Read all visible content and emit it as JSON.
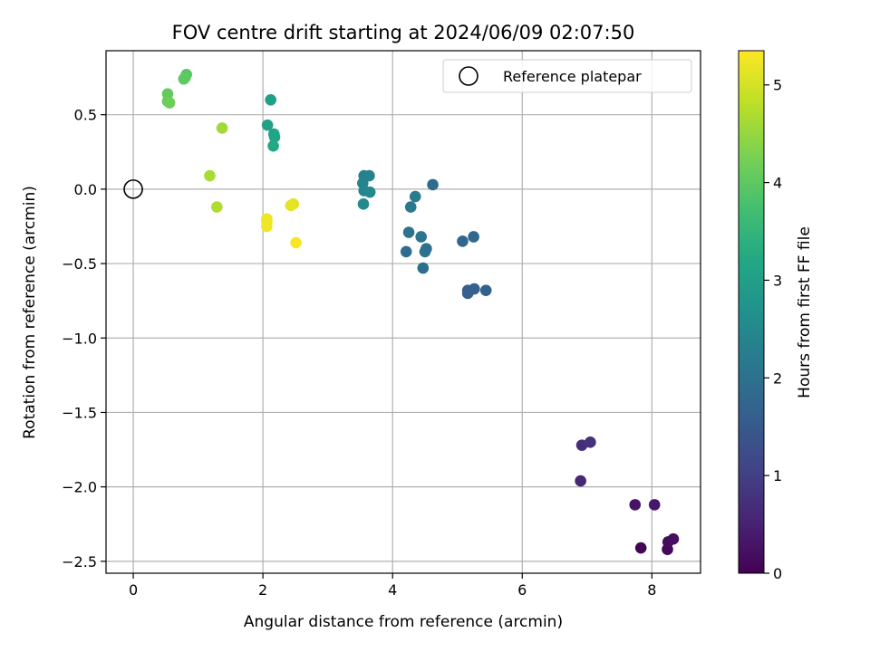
{
  "chart_data": {
    "type": "scatter",
    "title": "FOV centre drift starting at 2024/06/09 02:07:50",
    "xlabel": "Angular distance from reference (arcmin)",
    "ylabel": "Rotation from reference (arcmin)",
    "xlim": [
      -0.42,
      8.75
    ],
    "ylim": [
      -2.58,
      0.93
    ],
    "xticks": [
      0,
      2,
      4,
      6,
      8
    ],
    "xtick_labels": [
      "0",
      "2",
      "4",
      "6",
      "8"
    ],
    "yticks": [
      0.5,
      0.0,
      -0.5,
      -1.0,
      -1.5,
      -2.0,
      -2.5
    ],
    "ytick_labels": [
      "0.5",
      "0.0",
      "−0.5",
      "−1.0",
      "−1.5",
      "−2.0",
      "−2.5"
    ],
    "grid": true,
    "legend": {
      "placement": "upper-right",
      "label": "Reference platepar"
    },
    "reference_point": {
      "x": 0,
      "y": 0
    },
    "colorbar": {
      "label": "Hours from first FF file",
      "range": [
        0,
        5.35
      ],
      "ticks": [
        0,
        1,
        2,
        3,
        4,
        5
      ],
      "colormap": "viridis"
    },
    "points": [
      {
        "x": 7.83,
        "y": -2.41,
        "c": 0.05
      },
      {
        "x": 8.24,
        "y": -2.42,
        "c": 0.1
      },
      {
        "x": 8.25,
        "y": -2.37,
        "c": 0.15
      },
      {
        "x": 8.33,
        "y": -2.35,
        "c": 0.2
      },
      {
        "x": 7.74,
        "y": -2.12,
        "c": 0.3
      },
      {
        "x": 8.04,
        "y": -2.12,
        "c": 0.35
      },
      {
        "x": 6.9,
        "y": -1.96,
        "c": 0.6
      },
      {
        "x": 6.92,
        "y": -1.72,
        "c": 0.7
      },
      {
        "x": 7.05,
        "y": -1.7,
        "c": 0.75
      },
      {
        "x": 5.16,
        "y": -0.68,
        "c": 1.6
      },
      {
        "x": 5.16,
        "y": -0.7,
        "c": 1.62
      },
      {
        "x": 5.26,
        "y": -0.67,
        "c": 1.65
      },
      {
        "x": 5.44,
        "y": -0.68,
        "c": 1.7
      },
      {
        "x": 5.08,
        "y": -0.35,
        "c": 1.75
      },
      {
        "x": 5.25,
        "y": -0.32,
        "c": 1.8
      },
      {
        "x": 4.62,
        "y": 0.03,
        "c": 1.85
      },
      {
        "x": 4.21,
        "y": -0.42,
        "c": 1.9
      },
      {
        "x": 4.47,
        "y": -0.53,
        "c": 1.95
      },
      {
        "x": 4.52,
        "y": -0.4,
        "c": 2.0
      },
      {
        "x": 4.5,
        "y": -0.42,
        "c": 2.02
      },
      {
        "x": 4.25,
        "y": -0.29,
        "c": 2.05
      },
      {
        "x": 4.44,
        "y": -0.32,
        "c": 2.1
      },
      {
        "x": 4.28,
        "y": -0.12,
        "c": 2.15
      },
      {
        "x": 4.35,
        "y": -0.05,
        "c": 2.2
      },
      {
        "x": 3.56,
        "y": 0.09,
        "c": 2.3
      },
      {
        "x": 3.64,
        "y": 0.09,
        "c": 2.35
      },
      {
        "x": 3.54,
        "y": 0.04,
        "c": 2.4
      },
      {
        "x": 3.56,
        "y": -0.01,
        "c": 2.45
      },
      {
        "x": 3.65,
        "y": -0.02,
        "c": 2.5
      },
      {
        "x": 3.55,
        "y": -0.1,
        "c": 2.55
      },
      {
        "x": 2.12,
        "y": 0.6,
        "c": 3.0
      },
      {
        "x": 2.07,
        "y": 0.43,
        "c": 3.05
      },
      {
        "x": 2.17,
        "y": 0.37,
        "c": 3.1
      },
      {
        "x": 2.18,
        "y": 0.35,
        "c": 3.15
      },
      {
        "x": 2.16,
        "y": 0.29,
        "c": 3.2
      },
      {
        "x": 0.82,
        "y": 0.77,
        "c": 3.95
      },
      {
        "x": 0.8,
        "y": 0.75,
        "c": 4.0
      },
      {
        "x": 0.78,
        "y": 0.74,
        "c": 4.0
      },
      {
        "x": 0.53,
        "y": 0.64,
        "c": 4.05
      },
      {
        "x": 0.53,
        "y": 0.59,
        "c": 4.1
      },
      {
        "x": 0.56,
        "y": 0.58,
        "c": 4.15
      },
      {
        "x": 1.37,
        "y": 0.41,
        "c": 4.6
      },
      {
        "x": 1.18,
        "y": 0.09,
        "c": 4.65
      },
      {
        "x": 1.29,
        "y": -0.12,
        "c": 4.7
      },
      {
        "x": 2.47,
        "y": -0.1,
        "c": 5.1
      },
      {
        "x": 2.43,
        "y": -0.11,
        "c": 5.15
      },
      {
        "x": 2.06,
        "y": -0.2,
        "c": 5.2
      },
      {
        "x": 2.06,
        "y": -0.22,
        "c": 5.25
      },
      {
        "x": 2.06,
        "y": -0.25,
        "c": 5.25
      },
      {
        "x": 2.51,
        "y": -0.36,
        "c": 5.3
      }
    ]
  }
}
